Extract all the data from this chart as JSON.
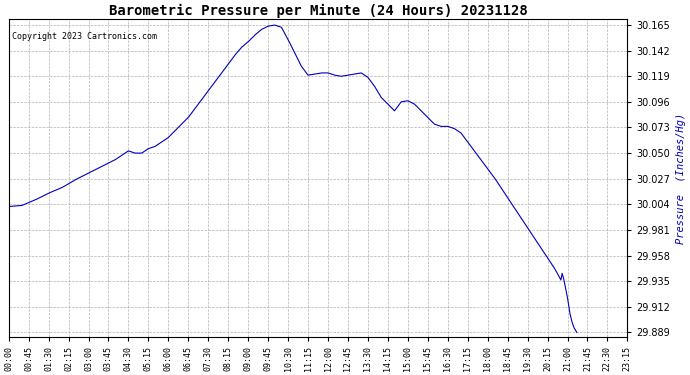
{
  "title": "Barometric Pressure per Minute (24 Hours) 20231128",
  "copyright_text": "Copyright 2023 Cartronics.com",
  "ylabel": "Pressure  (Inches/Hg)",
  "ylabel_color": "#0000bb",
  "line_color": "#0000bb",
  "background_color": "#ffffff",
  "grid_color": "#aaaaaa",
  "title_color": "#000000",
  "yticks": [
    29.889,
    29.912,
    29.935,
    29.958,
    29.981,
    30.004,
    30.027,
    30.05,
    30.073,
    30.096,
    30.119,
    30.142,
    30.165
  ],
  "xtick_labels": [
    "00:00",
    "00:45",
    "01:30",
    "02:15",
    "03:00",
    "03:45",
    "04:30",
    "05:15",
    "06:00",
    "06:45",
    "07:30",
    "08:15",
    "09:00",
    "09:45",
    "10:30",
    "11:15",
    "12:00",
    "12:45",
    "13:30",
    "14:15",
    "15:00",
    "15:45",
    "16:30",
    "17:15",
    "18:00",
    "18:45",
    "19:30",
    "20:15",
    "21:00",
    "21:45",
    "22:30",
    "23:15"
  ],
  "keypoints": [
    [
      0,
      30.002
    ],
    [
      30,
      30.003
    ],
    [
      60,
      30.008
    ],
    [
      90,
      30.014
    ],
    [
      120,
      30.019
    ],
    [
      150,
      30.026
    ],
    [
      180,
      30.032
    ],
    [
      210,
      30.038
    ],
    [
      240,
      30.044
    ],
    [
      255,
      30.048
    ],
    [
      270,
      30.052
    ],
    [
      285,
      30.05
    ],
    [
      300,
      30.05
    ],
    [
      315,
      30.054
    ],
    [
      330,
      30.056
    ],
    [
      345,
      30.06
    ],
    [
      360,
      30.064
    ],
    [
      375,
      30.07
    ],
    [
      390,
      30.076
    ],
    [
      405,
      30.082
    ],
    [
      420,
      30.09
    ],
    [
      435,
      30.098
    ],
    [
      450,
      30.106
    ],
    [
      465,
      30.114
    ],
    [
      480,
      30.122
    ],
    [
      495,
      30.13
    ],
    [
      510,
      30.138
    ],
    [
      525,
      30.145
    ],
    [
      540,
      30.15
    ],
    [
      555,
      30.156
    ],
    [
      570,
      30.161
    ],
    [
      585,
      30.164
    ],
    [
      600,
      30.165
    ],
    [
      615,
      30.163
    ],
    [
      630,
      30.152
    ],
    [
      645,
      30.14
    ],
    [
      660,
      30.128
    ],
    [
      675,
      30.12
    ],
    [
      690,
      30.121
    ],
    [
      705,
      30.122
    ],
    [
      720,
      30.122
    ],
    [
      735,
      30.12
    ],
    [
      750,
      30.119
    ],
    [
      765,
      30.12
    ],
    [
      780,
      30.121
    ],
    [
      795,
      30.122
    ],
    [
      810,
      30.118
    ],
    [
      825,
      30.11
    ],
    [
      840,
      30.1
    ],
    [
      855,
      30.094
    ],
    [
      870,
      30.088
    ],
    [
      885,
      30.096
    ],
    [
      900,
      30.097
    ],
    [
      915,
      30.094
    ],
    [
      930,
      30.088
    ],
    [
      945,
      30.082
    ],
    [
      960,
      30.076
    ],
    [
      975,
      30.074
    ],
    [
      990,
      30.074
    ],
    [
      1005,
      30.072
    ],
    [
      1020,
      30.068
    ],
    [
      1035,
      30.06
    ],
    [
      1050,
      30.052
    ],
    [
      1065,
      30.044
    ],
    [
      1080,
      30.036
    ],
    [
      1095,
      30.028
    ],
    [
      1110,
      30.019
    ],
    [
      1125,
      30.01
    ],
    [
      1140,
      30.001
    ],
    [
      1155,
      29.992
    ],
    [
      1170,
      29.983
    ],
    [
      1185,
      29.974
    ],
    [
      1200,
      29.965
    ],
    [
      1215,
      29.956
    ],
    [
      1230,
      29.947
    ],
    [
      1240,
      29.94
    ],
    [
      1245,
      29.936
    ],
    [
      1248,
      29.942
    ],
    [
      1252,
      29.936
    ],
    [
      1256,
      29.928
    ],
    [
      1260,
      29.92
    ],
    [
      1263,
      29.912
    ],
    [
      1266,
      29.905
    ],
    [
      1269,
      29.9
    ],
    [
      1272,
      29.896
    ],
    [
      1275,
      29.893
    ],
    [
      1278,
      29.891
    ],
    [
      1281,
      29.889
    ]
  ],
  "x_min": 0,
  "x_max": 1395,
  "y_min": 29.885,
  "y_max": 30.17
}
